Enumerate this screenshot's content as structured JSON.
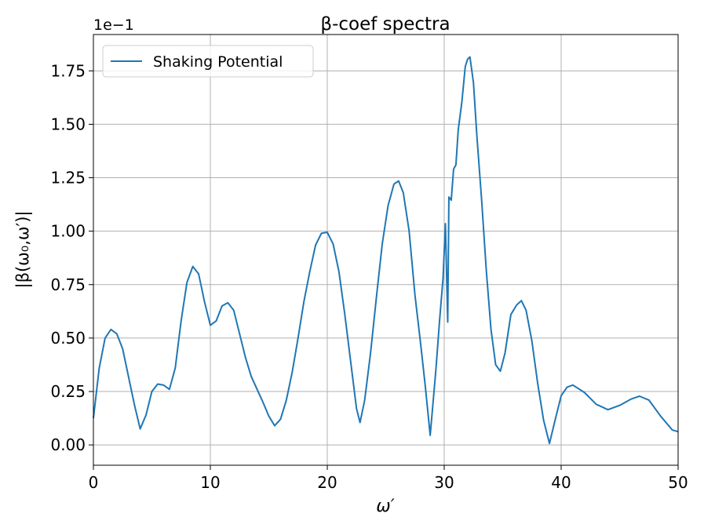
{
  "chart_data": {
    "type": "line",
    "title": "β-coef spectra",
    "x_label": "ω′",
    "y_label": "|β(ω₀,ω′)|",
    "y_offset_label": "1e−1",
    "x": [
      0,
      0.5,
      1.0,
      1.5,
      2.0,
      2.5,
      3.0,
      3.5,
      4.0,
      4.5,
      5.0,
      5.5,
      6.0,
      6.5,
      7.0,
      7.5,
      8.0,
      8.5,
      9.0,
      9.5,
      10.0,
      10.5,
      11.0,
      11.5,
      12.0,
      12.5,
      13.0,
      13.5,
      14.0,
      14.5,
      15.0,
      15.5,
      16.0,
      16.5,
      17.0,
      17.5,
      18.0,
      18.5,
      19.0,
      19.5,
      20.0,
      20.5,
      21.0,
      21.5,
      22.0,
      22.5,
      22.8,
      23.2,
      23.7,
      24.2,
      24.7,
      25.2,
      25.7,
      26.1,
      26.5,
      27.0,
      27.5,
      28.0,
      28.4,
      28.8,
      29.0,
      29.3,
      29.6,
      29.9,
      30.1,
      30.3,
      30.4,
      30.6,
      30.8,
      31.0,
      31.2,
      31.5,
      31.8,
      32.0,
      32.2,
      32.5,
      32.8,
      33.2,
      33.6,
      34.0,
      34.4,
      34.8,
      35.2,
      35.7,
      36.2,
      36.6,
      37.0,
      37.5,
      38.0,
      38.5,
      39.0,
      39.5,
      40.0,
      40.5,
      41.0,
      42.0,
      43.0,
      44.0,
      45.0,
      46.0,
      46.7,
      47.5,
      48.5,
      49.5,
      50.0
    ],
    "series": [
      {
        "name": "Shaking Potential",
        "color": "#1f77b4",
        "values": [
          0.125,
          0.36,
          0.5,
          0.54,
          0.52,
          0.45,
          0.32,
          0.19,
          0.075,
          0.14,
          0.25,
          0.285,
          0.28,
          0.26,
          0.36,
          0.58,
          0.76,
          0.835,
          0.8,
          0.67,
          0.56,
          0.58,
          0.65,
          0.665,
          0.63,
          0.52,
          0.41,
          0.32,
          0.26,
          0.2,
          0.135,
          0.09,
          0.12,
          0.21,
          0.34,
          0.5,
          0.67,
          0.81,
          0.935,
          0.99,
          0.995,
          0.94,
          0.81,
          0.61,
          0.39,
          0.17,
          0.105,
          0.21,
          0.43,
          0.69,
          0.94,
          1.12,
          1.22,
          1.235,
          1.18,
          1.0,
          0.7,
          0.465,
          0.265,
          0.045,
          0.17,
          0.36,
          0.58,
          0.78,
          1.035,
          0.575,
          1.16,
          1.145,
          1.29,
          1.31,
          1.475,
          1.6,
          1.77,
          1.805,
          1.815,
          1.695,
          1.44,
          1.145,
          0.815,
          0.54,
          0.375,
          0.345,
          0.43,
          0.61,
          0.655,
          0.675,
          0.63,
          0.485,
          0.285,
          0.115,
          0.007,
          0.12,
          0.23,
          0.27,
          0.28,
          0.245,
          0.19,
          0.165,
          0.185,
          0.215,
          0.228,
          0.21,
          0.135,
          0.07,
          0.062
        ]
      }
    ],
    "xlim": [
      0,
      50
    ],
    "xticks": [
      0,
      10,
      20,
      30,
      40,
      50
    ],
    "ylim": [
      -0.095,
      1.92
    ],
    "yticks": [
      {
        "value": 0,
        "label": "0.00"
      },
      {
        "value": 0.25,
        "label": "0.25"
      },
      {
        "value": 0.5,
        "label": "0.50"
      },
      {
        "value": 0.75,
        "label": "0.75"
      },
      {
        "value": 1.0,
        "label": "1.00"
      },
      {
        "value": 1.25,
        "label": "1.25"
      },
      {
        "value": 1.5,
        "label": "1.50"
      },
      {
        "value": 1.75,
        "label": "1.75"
      }
    ],
    "grid": true,
    "legend": "upper left"
  }
}
